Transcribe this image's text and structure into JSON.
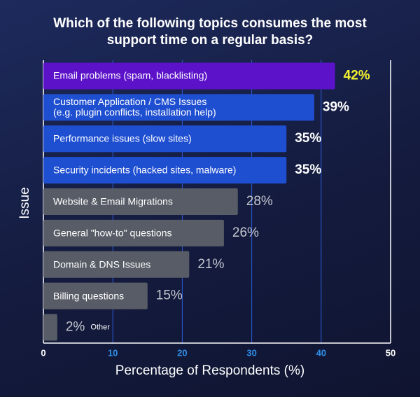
{
  "chart_data": {
    "type": "bar",
    "orientation": "horizontal",
    "title": "Which of the following topics consumes the most support time on a regular basis?",
    "categories": [
      "Email problems (spam, blacklisting)",
      "Customer Application / CMS Issues\n(e.g. plugin conflicts, installation help)",
      "Performance issues (slow sites)",
      "Security incidents (hacked sites, malware)",
      "Website & Email Migrations",
      "General \"how-to\" questions",
      "Domain & DNS Issues",
      "Billing questions",
      "Other"
    ],
    "values": [
      42,
      39,
      35,
      35,
      28,
      26,
      21,
      15,
      2
    ],
    "value_labels": [
      "42%",
      "39%",
      "35%",
      "35%",
      "28%",
      "26%",
      "21%",
      "15%",
      "2%"
    ],
    "colors": [
      "#5b12c9",
      "#1f4fd1",
      "#1f4fd1",
      "#1f4fd1",
      "#575c66",
      "#575c66",
      "#575c66",
      "#575c66",
      "#575c66"
    ],
    "value_label_colors": [
      "#f2f230",
      "#ffffff",
      "#ffffff",
      "#ffffff",
      "#c4c8d0",
      "#c4c8d0",
      "#c4c8d0",
      "#c4c8d0",
      "#c4c8d0"
    ],
    "xlabel": "Percentage of Respondents (%)",
    "ylabel": "Issue",
    "xlim": [
      0,
      50
    ],
    "xticks": [
      0,
      10,
      20,
      30,
      40,
      50
    ],
    "grid": true
  }
}
